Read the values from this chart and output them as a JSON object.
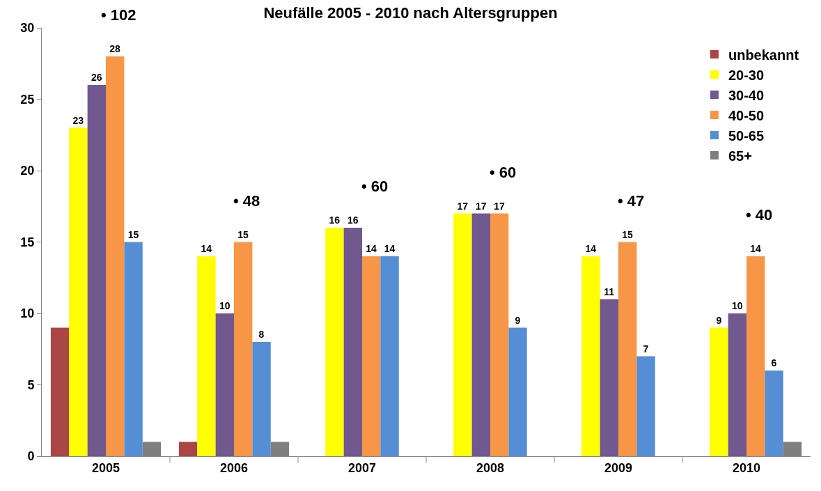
{
  "chart_data": {
    "type": "bar",
    "title": "Neufälle 2005 - 2010 nach Altersgruppen",
    "categories": [
      "2005",
      "2006",
      "2007",
      "2008",
      "2009",
      "2010"
    ],
    "series": [
      {
        "name": "unbekannt",
        "color": "#aa4644",
        "values": [
          9,
          1,
          0,
          0,
          0,
          0
        ],
        "value_labels": [
          null,
          null,
          null,
          null,
          null,
          null
        ]
      },
      {
        "name": "20-30",
        "color": "#ffff00",
        "values": [
          23,
          14,
          16,
          17,
          14,
          9
        ],
        "value_labels": [
          "23",
          "14",
          "16",
          "17",
          "14",
          "9"
        ]
      },
      {
        "name": "30-40",
        "color": "#71588f",
        "values": [
          26,
          10,
          16,
          17,
          11,
          10
        ],
        "value_labels": [
          "26",
          "10",
          "16",
          "17",
          "11",
          "10"
        ]
      },
      {
        "name": "40-50",
        "color": "#f79646",
        "values": [
          28,
          15,
          14,
          17,
          15,
          14
        ],
        "value_labels": [
          "28",
          "15",
          "14",
          "17",
          "15",
          "14"
        ]
      },
      {
        "name": "50-65",
        "color": "#558ed5",
        "values": [
          15,
          8,
          14,
          9,
          7,
          6
        ],
        "value_labels": [
          "15",
          "8",
          "14",
          "9",
          "7",
          "6"
        ]
      },
      {
        "name": "65+",
        "color": "#7f7f7f",
        "values": [
          1,
          1,
          0,
          0,
          0,
          1
        ],
        "value_labels": [
          null,
          null,
          null,
          null,
          null,
          null
        ]
      }
    ],
    "ylim": [
      0,
      30
    ],
    "yticks": [
      0,
      5,
      10,
      15,
      20,
      25,
      30
    ],
    "grid": false,
    "legend": "top right",
    "totals": [
      "• 102",
      "• 48",
      "• 60",
      "• 60",
      "• 47",
      "• 40"
    ]
  }
}
